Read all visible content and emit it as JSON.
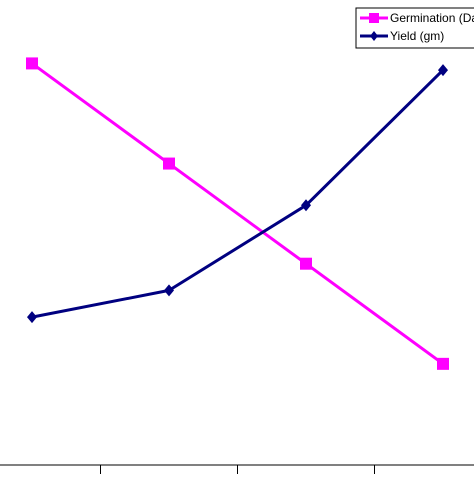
{
  "chart_data": {
    "type": "line",
    "categories": [
      "",
      "",
      "",
      ""
    ],
    "series": [
      {
        "name": "Germination (Da",
        "values": [
          100,
          70,
          40,
          10
        ],
        "color": "#ff00ff",
        "marker": "square"
      },
      {
        "name": "Yield (gm)",
        "values": [
          24,
          32,
          57.5,
          98
        ],
        "color": "#000080",
        "marker": "diamond"
      }
    ],
    "title": "",
    "xlabel": "",
    "ylabel": "",
    "ylim": [
      -23,
      119
    ],
    "grid": false,
    "legend": "top-right"
  }
}
